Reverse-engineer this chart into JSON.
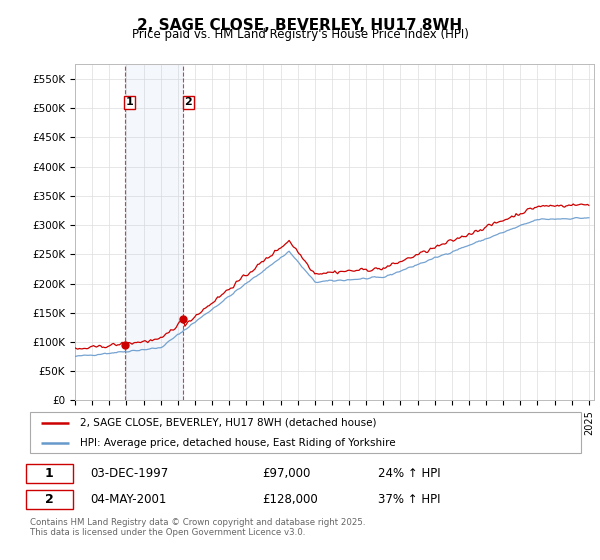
{
  "title": "2, SAGE CLOSE, BEVERLEY, HU17 8WH",
  "subtitle": "Price paid vs. HM Land Registry's House Price Index (HPI)",
  "legend_label_red": "2, SAGE CLOSE, BEVERLEY, HU17 8WH (detached house)",
  "legend_label_blue": "HPI: Average price, detached house, East Riding of Yorkshire",
  "transaction1_date": "03-DEC-1997",
  "transaction1_price": "£97,000",
  "transaction1_hpi": "24% ↑ HPI",
  "transaction2_date": "04-MAY-2001",
  "transaction2_price": "£128,000",
  "transaction2_hpi": "37% ↑ HPI",
  "copyright_text": "Contains HM Land Registry data © Crown copyright and database right 2025.\nThis data is licensed under the Open Government Licence v3.0.",
  "red_color": "#cc0000",
  "blue_color": "#6699cc",
  "background_color": "#ffffff",
  "grid_color": "#dddddd",
  "transaction1_year": 1997.92,
  "transaction1_value": 97000,
  "transaction2_year": 2001.34,
  "transaction2_value": 128000
}
